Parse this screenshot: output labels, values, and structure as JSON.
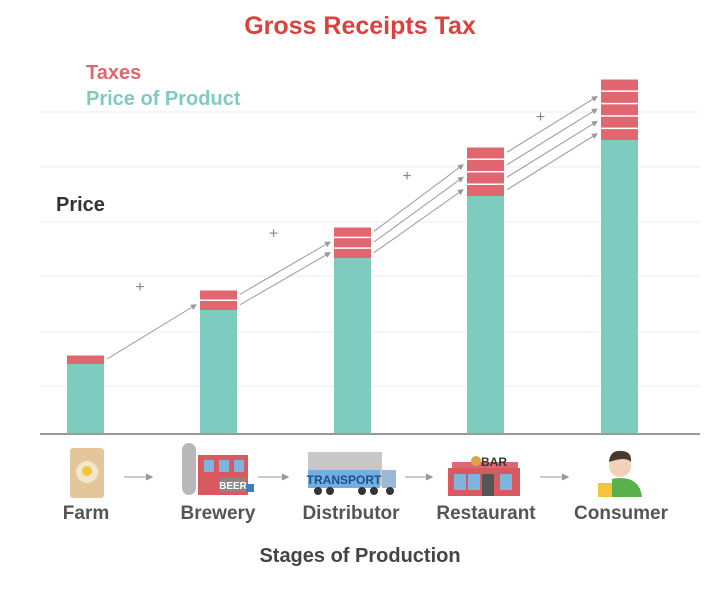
{
  "title": "Gross Receipts Tax",
  "legend": [
    {
      "label": "Taxes",
      "color": "#e06670"
    },
    {
      "label": "Price of Product",
      "color": "#7ecbc0"
    }
  ],
  "colors": {
    "tax": "#e06670",
    "product": "#7ecbc0",
    "title": "#d9423f",
    "arrow": "#999999"
  },
  "chart_data": {
    "type": "bar",
    "stacked": true,
    "ylabel": "Price",
    "xlabel": "Stages of Production",
    "categories": [
      "Farm",
      "Brewery",
      "Distributor",
      "Restaurant",
      "Consumer"
    ],
    "series": [
      {
        "name": "Price of Product",
        "values": [
          69,
          123,
          175,
          237,
          293
        ]
      },
      {
        "name": "Taxes",
        "values": [
          10,
          21,
          32,
          50,
          62
        ],
        "tax_layers": [
          1,
          2,
          3,
          4,
          5
        ]
      }
    ],
    "grid": true,
    "annotations": [
      "+",
      "+",
      "+",
      "+"
    ]
  },
  "stages": [
    {
      "label": "Farm",
      "icon": "grain-sack-icon"
    },
    {
      "label": "Brewery",
      "icon": "brewery-icon",
      "sign": "BEER"
    },
    {
      "label": "Distributor",
      "icon": "transport-truck-icon",
      "sign": "TRANSPORT"
    },
    {
      "label": "Restaurant",
      "icon": "bar-restaurant-icon",
      "sign": "BAR"
    },
    {
      "label": "Consumer",
      "icon": "consumer-with-beer-icon"
    }
  ]
}
